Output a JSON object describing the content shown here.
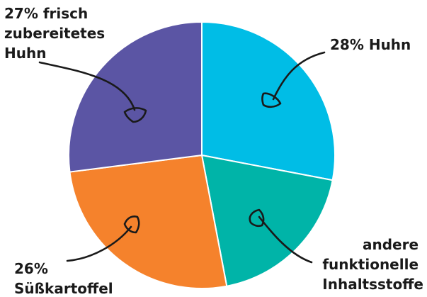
{
  "chart_data": {
    "type": "pie",
    "slices": [
      {
        "label": "28% Huhn",
        "value": 28,
        "color": "#00bde6"
      },
      {
        "label": "andere funktionelle Inhaltsstoffe",
        "value": 19,
        "color": "#00b4a8"
      },
      {
        "label": "26% Süßkartoffel",
        "value": 26,
        "color": "#f5822c"
      },
      {
        "label": "27% frisch zubereitetes Huhn",
        "value": 27,
        "color": "#5b55a4"
      }
    ],
    "labels": {
      "slice0": [
        "28% Huhn"
      ],
      "slice1": [
        "andere",
        "funktionelle",
        "Inhaltsstoffe"
      ],
      "slice2": [
        "26%",
        "Süßkartoffel"
      ],
      "slice3": [
        "27% frisch",
        "zubereitetes",
        "Huhn"
      ]
    }
  }
}
